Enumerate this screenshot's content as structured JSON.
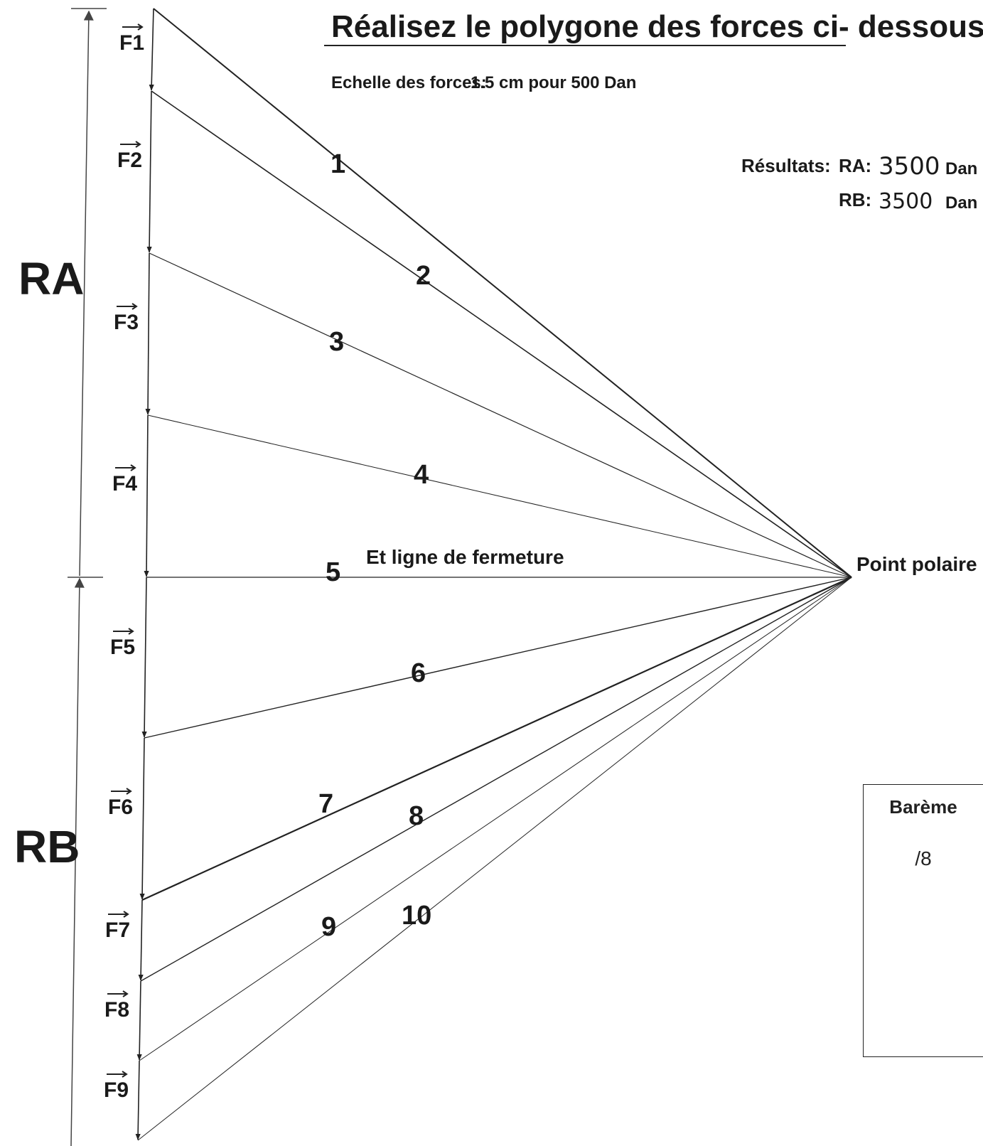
{
  "title": "Réalisez le polygone des forces ci- dessous",
  "scale_label": "Echelle des forces:",
  "scale_value": "1.5 cm pour 500 Dan",
  "results": {
    "label": "Résultats:",
    "ra_label": "RA:",
    "ra_value": "3500",
    "ra_unit": "Dan",
    "rb_label": "RB:",
    "rb_value": "3500",
    "rb_unit": "Dan"
  },
  "reactions": {
    "ra": "RA",
    "rb": "RB"
  },
  "forces": [
    "F1",
    "F2",
    "F3",
    "F4",
    "F5",
    "F6",
    "F7",
    "F8",
    "F9"
  ],
  "rays": [
    "1",
    "2",
    "3",
    "4",
    "5",
    "6",
    "7",
    "8",
    "9",
    "10"
  ],
  "closing_line_label": "Et ligne de fermeture",
  "pole_label": "Point polaire",
  "bareme": {
    "title": "Barème",
    "score": "/8"
  }
}
